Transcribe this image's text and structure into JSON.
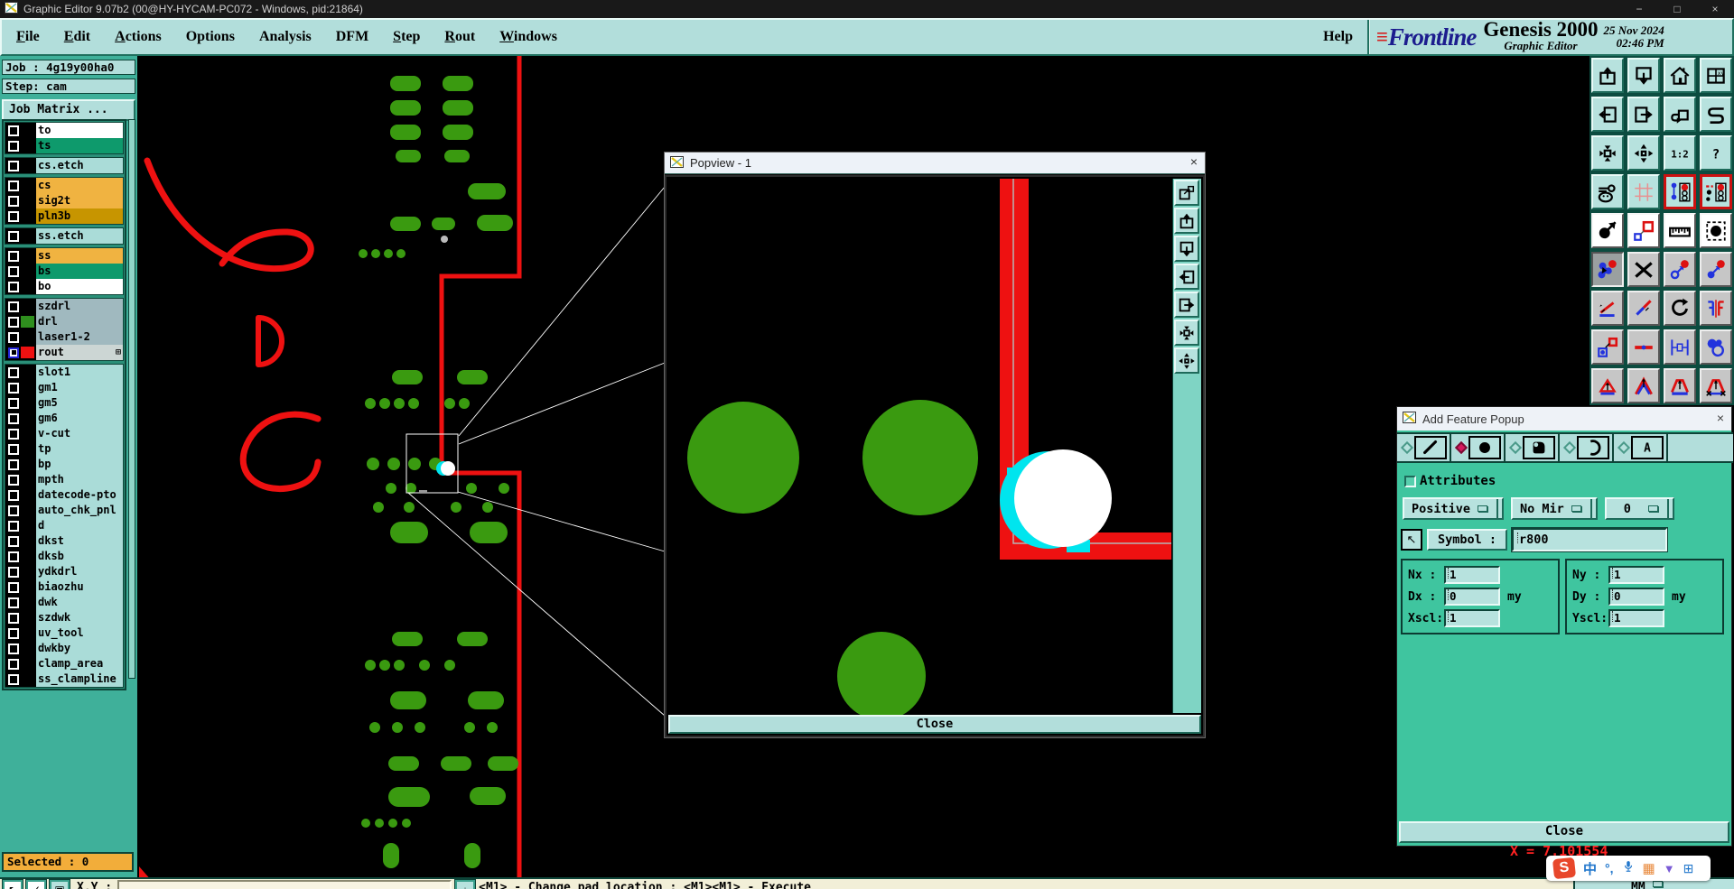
{
  "window": {
    "title": "Graphic Editor 9.07b2 (00@HY-HYCAM-PC072 - Windows, pid:21864)",
    "controls": [
      "−",
      "□",
      "×"
    ]
  },
  "menu": {
    "items": [
      {
        "label": "File",
        "u": 0
      },
      {
        "label": "Edit",
        "u": 0
      },
      {
        "label": "Actions",
        "u": 0
      },
      {
        "label": "Options",
        "u": -1
      },
      {
        "label": "Analysis",
        "u": -1
      },
      {
        "label": "DFM",
        "u": -1
      },
      {
        "label": "Step",
        "u": 0
      },
      {
        "label": "Rout",
        "u": 0
      },
      {
        "label": "Windows",
        "u": 0
      }
    ],
    "help_label": "Help"
  },
  "brand": {
    "stripes": "≡",
    "logo": "Frontline",
    "product": "Genesis 2000",
    "subtitle": "Graphic Editor",
    "date": "25 Nov 2024",
    "time": "02:46 PM"
  },
  "sidebar": {
    "job_line": "Job : 4g19y00ha0",
    "step_line": "Step: cam",
    "job_matrix_label": "Job Matrix ...",
    "selected_status": "Selected : 0",
    "layer_groups": [
      [
        {
          "name": "to",
          "bg": "#ffffff"
        },
        {
          "name": "ts",
          "bg": "#0e9a6c"
        }
      ],
      [
        {
          "name": "cs.etch",
          "bg": "#aadcd8"
        }
      ],
      [
        {
          "name": "cs",
          "bg": "#f0b341"
        },
        {
          "name": "sig2t",
          "bg": "#f0b341"
        },
        {
          "name": "pln3b",
          "bg": "#c79500"
        }
      ],
      [
        {
          "name": "ss.etch",
          "bg": "#aadcd8"
        }
      ],
      [
        {
          "name": "ss",
          "bg": "#f0b341"
        },
        {
          "name": "bs",
          "bg": "#0e9a6c"
        },
        {
          "name": "bo",
          "bg": "#ffffff"
        }
      ],
      [
        {
          "name": "szdrl",
          "bg": "#a0b9bf"
        },
        {
          "name": "drl",
          "bg": "#a0b9bf",
          "swatch": "#2f8f1e"
        },
        {
          "name": "laser1-2",
          "bg": "#a0b9bf"
        },
        {
          "name": "rout",
          "bg": "#ccd6d4",
          "swatch": "#ee1111",
          "active": true,
          "grid_glyph": "⊞"
        }
      ],
      [
        {
          "name": "slot1",
          "bg": "#aadcd8"
        },
        {
          "name": "gm1",
          "bg": "#aadcd8"
        },
        {
          "name": "gm5",
          "bg": "#aadcd8"
        },
        {
          "name": "gm6",
          "bg": "#aadcd8"
        },
        {
          "name": "v-cut",
          "bg": "#aadcd8"
        },
        {
          "name": "tp",
          "bg": "#aadcd8"
        },
        {
          "name": "bp",
          "bg": "#aadcd8"
        },
        {
          "name": "mpth",
          "bg": "#aadcd8"
        },
        {
          "name": "datecode-pto",
          "bg": "#aadcd8"
        },
        {
          "name": "auto_chk_pnl",
          "bg": "#aadcd8"
        },
        {
          "name": "d",
          "bg": "#aadcd8"
        },
        {
          "name": "dkst",
          "bg": "#aadcd8"
        },
        {
          "name": "dksb",
          "bg": "#aadcd8"
        },
        {
          "name": "ydkdrl",
          "bg": "#aadcd8"
        },
        {
          "name": "biaozhu",
          "bg": "#aadcd8"
        },
        {
          "name": "dwk",
          "bg": "#aadcd8"
        },
        {
          "name": "szdwk",
          "bg": "#aadcd8"
        },
        {
          "name": "uv_tool",
          "bg": "#aadcd8"
        },
        {
          "name": "dwkby",
          "bg": "#aadcd8"
        },
        {
          "name": "clamp_area",
          "bg": "#aadcd8"
        },
        {
          "name": "ss_clampline",
          "bg": "#aadcd8"
        }
      ]
    ]
  },
  "right_toolbar": {
    "rows": [
      [
        {
          "id": "pan-up",
          "style": "teal"
        },
        {
          "id": "pan-down",
          "style": "teal"
        },
        {
          "id": "home",
          "style": "teal"
        },
        {
          "id": "window-xy",
          "style": "teal",
          "glyph": "xy"
        }
      ],
      [
        {
          "id": "pan-left",
          "style": "teal"
        },
        {
          "id": "pan-right",
          "style": "teal"
        },
        {
          "id": "undo-view",
          "style": "teal"
        },
        {
          "id": "s-route",
          "style": "teal"
        }
      ],
      [
        {
          "id": "zoom-in",
          "style": "teal"
        },
        {
          "id": "zoom-out",
          "style": "teal"
        },
        {
          "id": "scale-1-2",
          "style": "teal",
          "glyph": "1:2"
        },
        {
          "id": "help",
          "style": "teal",
          "glyph": "?"
        }
      ],
      [
        {
          "id": "tools-palette",
          "style": "teal"
        },
        {
          "id": "grid",
          "style": "teal"
        },
        {
          "id": "highlight-1",
          "style": "red-frame"
        },
        {
          "id": "highlight-2",
          "style": "red-frame"
        }
      ],
      [
        {
          "id": "move-feature",
          "style": "white"
        },
        {
          "id": "copy-feature",
          "style": "white"
        },
        {
          "id": "measure",
          "style": "white"
        },
        {
          "id": "select-pad",
          "style": "white"
        }
      ],
      [
        {
          "id": "netlist",
          "style": "pressed"
        },
        {
          "id": "delete",
          "style": "gray"
        },
        {
          "id": "transfer-open",
          "style": "gray"
        },
        {
          "id": "transfer-filled",
          "style": "gray"
        }
      ],
      [
        {
          "id": "angle-line",
          "style": "gray"
        },
        {
          "id": "slope-line",
          "style": "gray"
        },
        {
          "id": "rotate",
          "style": "gray"
        },
        {
          "id": "mirror",
          "style": "gray"
        }
      ],
      [
        {
          "id": "copy-pad-layer",
          "style": "gray"
        },
        {
          "id": "stretch-line",
          "style": "gray"
        },
        {
          "id": "dimension",
          "style": "gray"
        },
        {
          "id": "touching-circles",
          "style": "gray"
        }
      ],
      [
        {
          "id": "tri-1",
          "style": "gray"
        },
        {
          "id": "tri-2",
          "style": "gray"
        },
        {
          "id": "tri-3",
          "style": "gray"
        },
        {
          "id": "tri-4",
          "style": "gray"
        }
      ]
    ]
  },
  "popview": {
    "title": "Popview - 1",
    "close_x": "×",
    "close_label": "Close",
    "tools": [
      {
        "id": "popview-new"
      },
      {
        "id": "pan-up"
      },
      {
        "id": "pan-down"
      },
      {
        "id": "pan-left"
      },
      {
        "id": "pan-right"
      },
      {
        "id": "zoom-in"
      },
      {
        "id": "zoom-out"
      }
    ]
  },
  "add_feature": {
    "title": "Add Feature Popup",
    "close_x": "×",
    "tools": [
      {
        "id": "line-tool",
        "selected": false
      },
      {
        "id": "pad-tool",
        "selected": true
      },
      {
        "id": "surface-tool",
        "selected": false
      },
      {
        "id": "arc-tool",
        "selected": false
      },
      {
        "id": "text-tool",
        "selected": false
      }
    ],
    "attributes_label": "Attributes",
    "dropdowns": [
      {
        "label": "Positive"
      },
      {
        "label": "No Mir"
      },
      {
        "label": "0"
      }
    ],
    "select_arrow": "↖",
    "symbol_label": "Symbol :",
    "symbol_value": "r800",
    "fields_x": [
      {
        "label": "Nx",
        "colon": ":",
        "value": "1",
        "unit": ""
      },
      {
        "label": "Dx",
        "colon": ":",
        "value": "0",
        "unit": "my"
      },
      {
        "label": "Xscl:",
        "colon": "",
        "value": "1",
        "unit": ""
      }
    ],
    "fields_y": [
      {
        "label": "Ny",
        "colon": ":",
        "value": "1",
        "unit": ""
      },
      {
        "label": "Dy",
        "colon": ":",
        "value": "0",
        "unit": "my"
      },
      {
        "label": "Yscl:",
        "colon": "",
        "value": "1",
        "unit": ""
      }
    ],
    "close_label": "Close"
  },
  "status": {
    "coord_readout": "X = 7.101554",
    "xy_label": "X,Y :",
    "xy_value": "",
    "hint": "<M1> - Change pad location : <M1><M1> - Execute",
    "units": "MM",
    "buttons": [
      {
        "id": "select-arrow-btn",
        "glyph": "↖",
        "style": ""
      },
      {
        "id": "check-btn",
        "glyph": "✓",
        "style": ""
      },
      {
        "id": "window-btn",
        "glyph": "▣",
        "style": "teal"
      },
      {
        "id": "down-btn",
        "glyph": "↓",
        "style": "teal",
        "after_input": true
      }
    ]
  },
  "tray": {
    "sogou_logo": "S",
    "chinese_mode": "中",
    "punctuation": "°,",
    "icons": [
      "microphone",
      "keyboard",
      "skin",
      "grid"
    ],
    "keyboard_glyph": "▦",
    "skin_glyph": "▼",
    "grid_glyph": "⊞"
  },
  "colors": {
    "teal_light": "#b2dedb",
    "teal_mid": "#3fb09a",
    "popup_green": "#3fc59f",
    "pad_green": "#3a9a10",
    "trace_red": "#ee1111",
    "highlight_cyan": "#00e5ee",
    "selected_orange": "#f2ad3a"
  }
}
